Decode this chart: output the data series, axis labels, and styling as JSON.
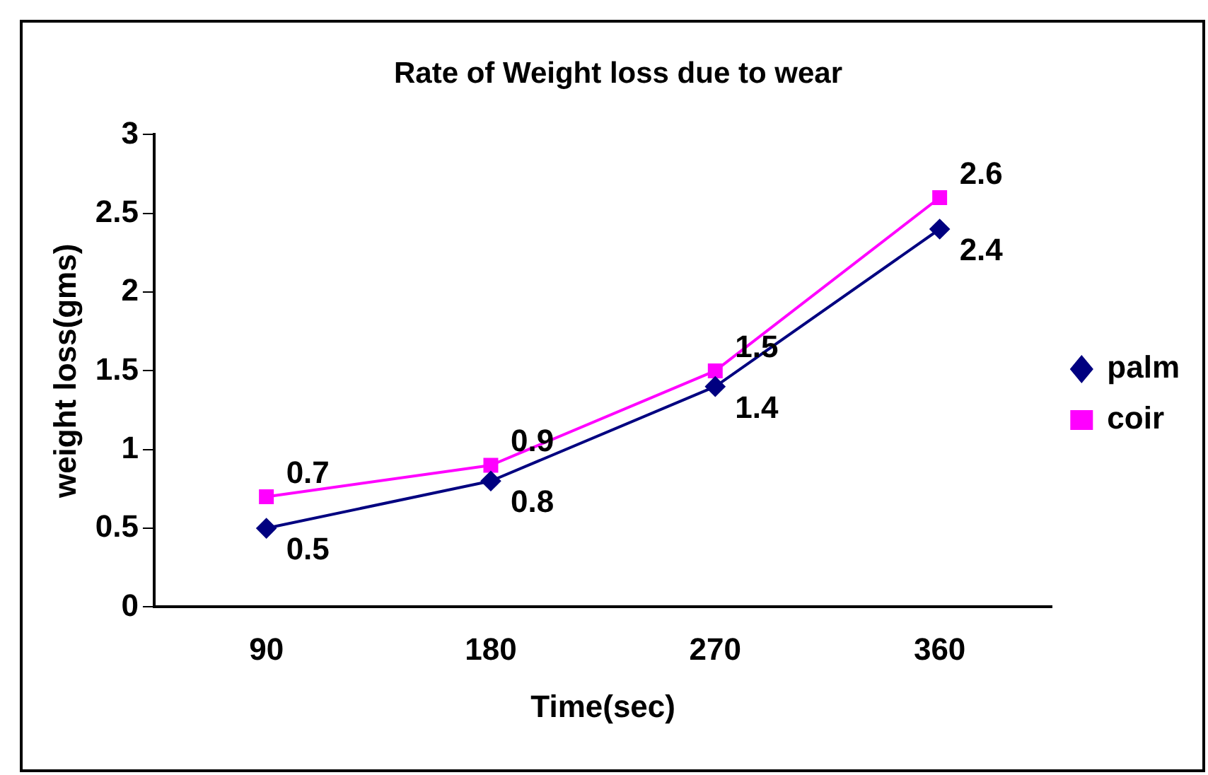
{
  "chart_data": {
    "type": "line",
    "title": "Rate of Weight loss due to wear",
    "xlabel": "Time(sec)",
    "ylabel": "weight loss(gms)",
    "categories": [
      "90",
      "180",
      "270",
      "360"
    ],
    "series": [
      {
        "name": "palm",
        "color": "#000080",
        "marker": "diamond",
        "values": [
          0.5,
          0.8,
          1.4,
          2.4
        ]
      },
      {
        "name": "coir",
        "color": "#ff00ff",
        "marker": "square",
        "values": [
          0.7,
          0.9,
          1.5,
          2.6
        ]
      }
    ],
    "ylim": [
      0,
      3
    ],
    "yticks": [
      0,
      0.5,
      1,
      1.5,
      2,
      2.5,
      3
    ],
    "grid": false,
    "legend": "right",
    "data_labels": true
  }
}
